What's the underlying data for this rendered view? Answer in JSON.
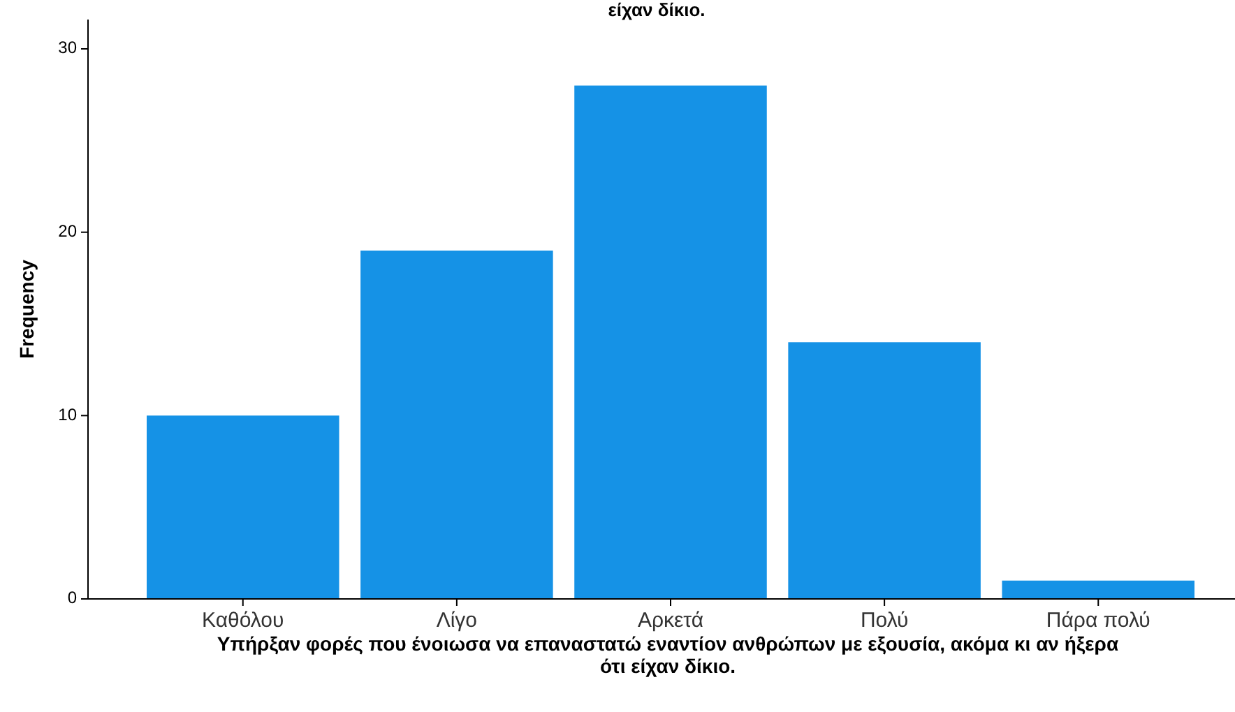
{
  "chart_data": {
    "type": "bar",
    "title": "είχαν δίκιο.",
    "xlabel": "Υπήρξαν φορές που ένοιωσα να επαναστατώ εναντίον ανθρώπων με εξουσία, ακόμα κι αν ήξερα ότι είχαν δίκιο.",
    "ylabel": "Frequency",
    "categories": [
      "Καθόλου",
      "Λίγο",
      "Αρκετά",
      "Πολύ",
      "Πάρα πολύ"
    ],
    "values": [
      10,
      19,
      28,
      14,
      1
    ],
    "color": "#1592e6",
    "ylim": [
      0,
      31.6
    ],
    "yticks": [
      0,
      10,
      20,
      30
    ],
    "grid": false
  }
}
